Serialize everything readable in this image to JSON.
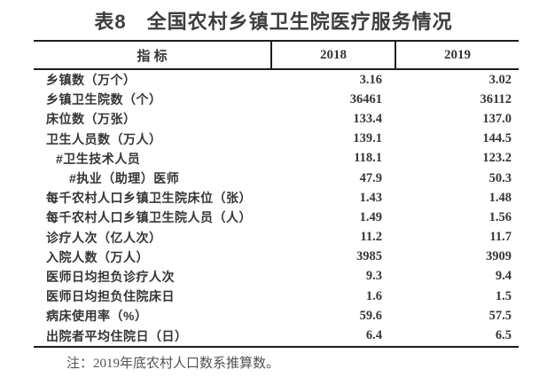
{
  "chart_data": {
    "type": "table",
    "title": "表8　全国农村乡镇卫生院医疗服务情况",
    "columns": [
      "指 标",
      "2018",
      "2019"
    ],
    "rows": [
      {
        "label": "乡镇数（万个）",
        "indent": 0,
        "values": [
          "3.16",
          "3.02"
        ]
      },
      {
        "label": "乡镇卫生院数（个）",
        "indent": 0,
        "values": [
          "36461",
          "36112"
        ]
      },
      {
        "label": "床位数（万张）",
        "indent": 0,
        "values": [
          "133.4",
          "137.0"
        ]
      },
      {
        "label": "卫生人员数（万人）",
        "indent": 0,
        "values": [
          "139.1",
          "144.5"
        ]
      },
      {
        "label": "#卫生技术人员",
        "indent": 1,
        "values": [
          "118.1",
          "123.2"
        ]
      },
      {
        "label": "#执业（助理）医师",
        "indent": 2,
        "values": [
          "47.9",
          "50.3"
        ]
      },
      {
        "label": "每千农村人口乡镇卫生院床位（张）",
        "indent": 0,
        "values": [
          "1.43",
          "1.48"
        ]
      },
      {
        "label": "每千农村人口乡镇卫生院人员（人）",
        "indent": 0,
        "values": [
          "1.49",
          "1.56"
        ]
      },
      {
        "label": "诊疗人次（亿人次）",
        "indent": 0,
        "values": [
          "11.2",
          "11.7"
        ]
      },
      {
        "label": "入院人数（万人）",
        "indent": 0,
        "values": [
          "3985",
          "3909"
        ]
      },
      {
        "label": "医师日均担负诊疗人次",
        "indent": 0,
        "values": [
          "9.3",
          "9.4"
        ]
      },
      {
        "label": "医师日均担负住院床日",
        "indent": 0,
        "values": [
          "1.6",
          "1.5"
        ]
      },
      {
        "label": "病床使用率（%）",
        "indent": 0,
        "values": [
          "59.6",
          "57.5"
        ]
      },
      {
        "label": "出院者平均住院日（日）",
        "indent": 0,
        "values": [
          "6.4",
          "6.5"
        ]
      }
    ],
    "note": "注：2019年底农村人口数系推算数。"
  },
  "colors": {
    "title_text": "#3d3d3f",
    "table_text": "#353537",
    "table_line": "#1d1d1d",
    "note_text": "#515153",
    "background": "#ffffff"
  }
}
